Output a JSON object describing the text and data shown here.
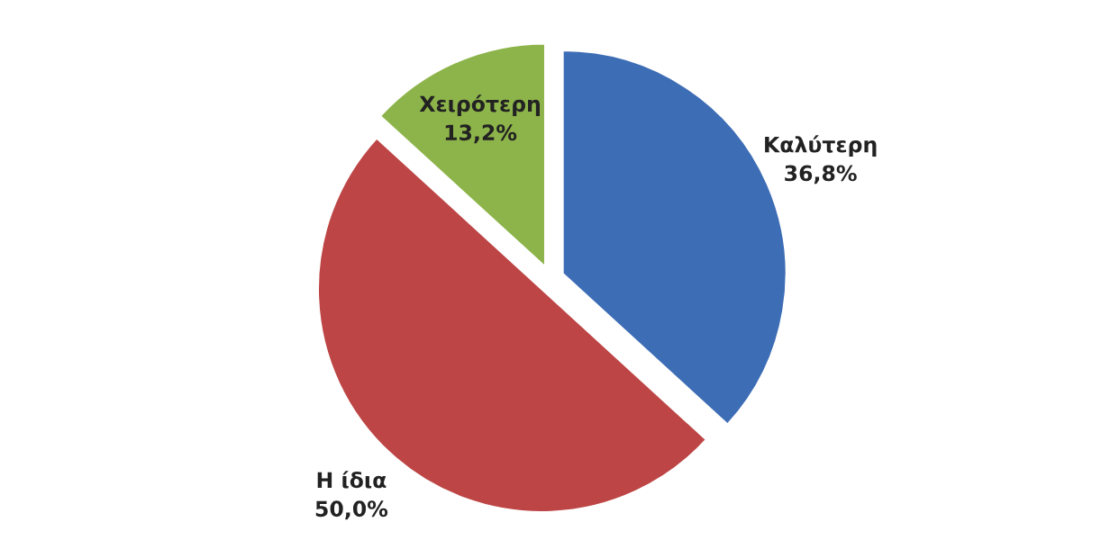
{
  "chart_data": {
    "type": "pie",
    "categories": [
      "Καλύτερη",
      "Η ίδια",
      "Χειρότερη"
    ],
    "values": [
      36.8,
      50.0,
      13.2
    ],
    "value_labels": [
      "36,8%",
      "50,0%",
      "13,2%"
    ],
    "colors": [
      "#3d6db5",
      "#bd4545",
      "#8db44a"
    ],
    "legend": false
  }
}
